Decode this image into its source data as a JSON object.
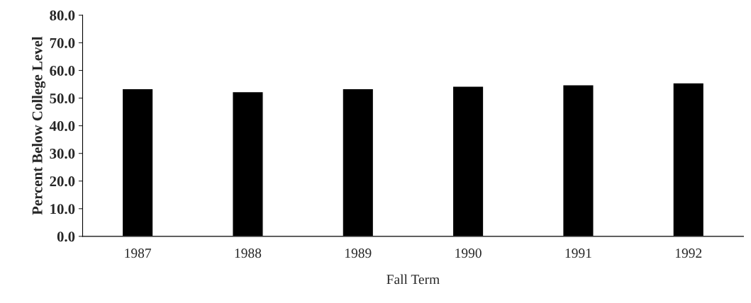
{
  "chart_data": {
    "type": "bar",
    "xlabel": "Fall Term",
    "ylabel": "Percent Below College Level",
    "categories": [
      "1987",
      "1988",
      "1989",
      "1990",
      "1991",
      "1992"
    ],
    "values": [
      53.4,
      52.3,
      53.4,
      54.3,
      54.8,
      55.5
    ],
    "color": "#000000",
    "ylim": [
      0,
      80
    ],
    "yticks": [
      {
        "value": 0,
        "label": "0.0"
      },
      {
        "value": 10,
        "label": "10.0"
      },
      {
        "value": 20,
        "label": "20.0"
      },
      {
        "value": 30,
        "label": "30.0"
      },
      {
        "value": 40,
        "label": "40.0"
      },
      {
        "value": 50,
        "label": "50.0"
      },
      {
        "value": 60,
        "label": "60.0"
      },
      {
        "value": 70,
        "label": "70.0"
      },
      {
        "value": 80,
        "label": "80.0"
      }
    ],
    "grid": false
  }
}
